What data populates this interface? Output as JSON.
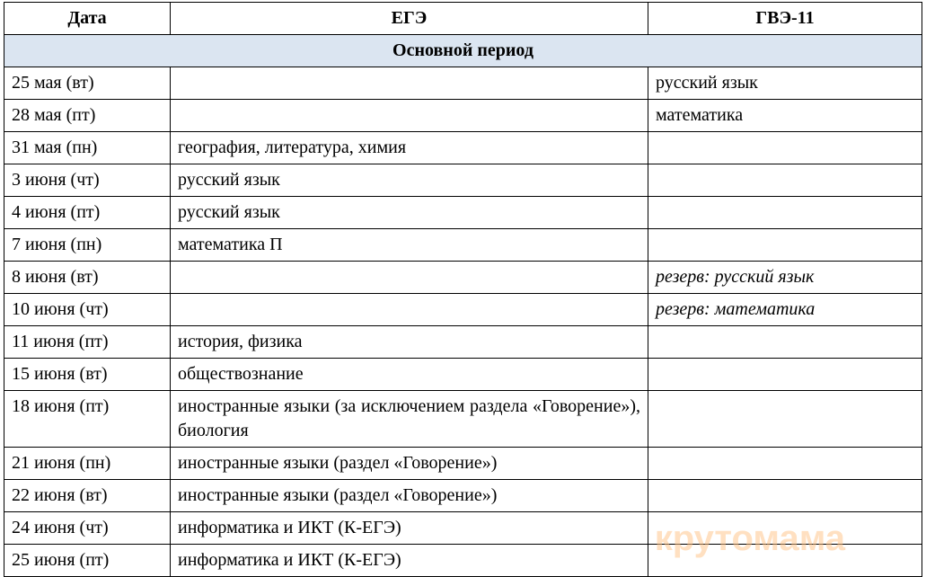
{
  "columns": {
    "date": "Дата",
    "ege": "ЕГЭ",
    "gve": "ГВЭ-11"
  },
  "section_header": "Основной период",
  "colors": {
    "section_bg": "#dbe5f1",
    "border": "#000000",
    "background": "#ffffff",
    "watermark": "#ffc285"
  },
  "column_widths": {
    "date": 185,
    "ege": 532,
    "gve": 305
  },
  "typography": {
    "font_family": "Times New Roman",
    "font_size": 20,
    "header_weight": "bold"
  },
  "rows": [
    {
      "date": "25 мая (вт)",
      "ege": "",
      "gve": "русский язык",
      "gve_italic": false
    },
    {
      "date": "28 мая (пт)",
      "ege": "",
      "gve": "математика",
      "gve_italic": false
    },
    {
      "date": "31 мая (пн)",
      "ege": "география, литература, химия",
      "gve": "",
      "gve_italic": false
    },
    {
      "date": "3 июня (чт)",
      "ege": "русский язык",
      "gve": "",
      "gve_italic": false
    },
    {
      "date": "4 июня (пт)",
      "ege": "русский язык",
      "gve": "",
      "gve_italic": false
    },
    {
      "date": "7 июня (пн)",
      "ege": "математика П",
      "gve": "",
      "gve_italic": false
    },
    {
      "date": "8 июня (вт)",
      "ege": "",
      "gve": "резерв: русский язык",
      "gve_italic": true
    },
    {
      "date": "10 июня (чт)",
      "ege": "",
      "gve": "резерв: математика",
      "gve_italic": true
    },
    {
      "date": "11 июня (пт)",
      "ege": "история, физика",
      "gve": "",
      "gve_italic": false
    },
    {
      "date": "15 июня (вт)",
      "ege": "обществознание",
      "gve": "",
      "gve_italic": false
    },
    {
      "date": "18 июня (пт)",
      "ege": "иностранные языки (за исключением раздела «Говорение»), биология",
      "gve": "",
      "gve_italic": false,
      "justify": true
    },
    {
      "date": "21 июня (пн)",
      "ege": "иностранные языки (раздел «Говорение»)",
      "gve": "",
      "gve_italic": false
    },
    {
      "date": "22 июня (вт)",
      "ege": "иностранные языки (раздел «Говорение»)",
      "gve": "",
      "gve_italic": false
    },
    {
      "date": "24 июня (чт)",
      "ege": "информатика и ИКТ (К-ЕГЭ)",
      "gve": "",
      "gve_italic": false
    },
    {
      "date": "25 июня (пт)",
      "ege": "информатика и ИКТ (К-ЕГЭ)",
      "gve": "",
      "gve_italic": false
    }
  ],
  "watermark_text": "крутомама"
}
